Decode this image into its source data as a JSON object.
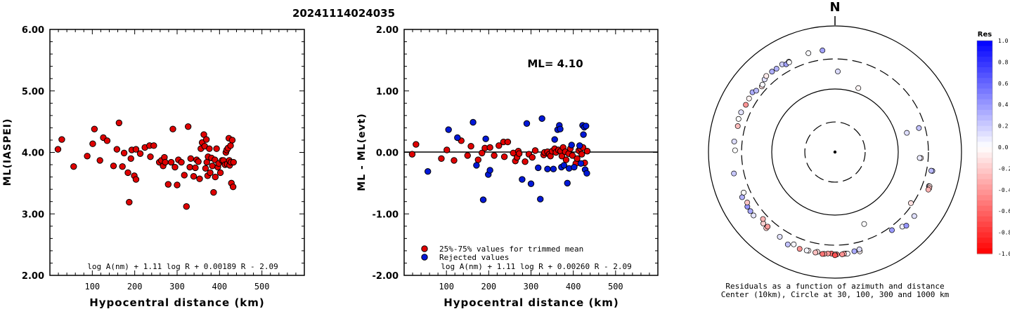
{
  "title": "20241114024035",
  "chart_data": [
    {
      "type": "scatter",
      "id": "left",
      "xlabel": "Hypocentral distance (km)",
      "ylabel": "ML(IASPEI)",
      "xlim": [
        0,
        600
      ],
      "ylim": [
        2.0,
        6.0
      ],
      "xticks": [
        "100",
        "200",
        "300",
        "400",
        "500"
      ],
      "yticks": [
        "2.00",
        "3.00",
        "4.00",
        "5.00",
        "6.00"
      ],
      "formula": "log A(nm) + 1.11 log R + 0.00189 R - 2.09",
      "color": "#e00000",
      "points": [
        [
          19,
          4.05
        ],
        [
          28,
          4.21
        ],
        [
          56,
          3.77
        ],
        [
          88,
          3.94
        ],
        [
          101,
          4.14
        ],
        [
          105,
          4.38
        ],
        [
          118,
          3.87
        ],
        [
          126,
          4.24
        ],
        [
          135,
          4.19
        ],
        [
          150,
          3.78
        ],
        [
          158,
          4.05
        ],
        [
          163,
          4.48
        ],
        [
          171,
          3.77
        ],
        [
          175,
          3.99
        ],
        [
          184,
          3.67
        ],
        [
          187,
          3.19
        ],
        [
          191,
          3.9
        ],
        [
          193,
          4.04
        ],
        [
          199,
          3.62
        ],
        [
          203,
          4.05
        ],
        [
          203,
          3.56
        ],
        [
          213,
          3.98
        ],
        [
          224,
          4.08
        ],
        [
          235,
          4.11
        ],
        [
          237,
          3.93
        ],
        [
          245,
          4.11
        ],
        [
          258,
          3.84
        ],
        [
          263,
          3.87
        ],
        [
          267,
          3.78
        ],
        [
          270,
          3.92
        ],
        [
          272,
          3.84
        ],
        [
          279,
          3.48
        ],
        [
          286,
          3.84
        ],
        [
          290,
          4.38
        ],
        [
          295,
          3.76
        ],
        [
          300,
          3.47
        ],
        [
          303,
          3.88
        ],
        [
          310,
          3.84
        ],
        [
          317,
          3.63
        ],
        [
          322,
          3.12
        ],
        [
          326,
          4.42
        ],
        [
          330,
          3.76
        ],
        [
          332,
          3.9
        ],
        [
          339,
          3.61
        ],
        [
          343,
          3.75
        ],
        [
          346,
          3.88
        ],
        [
          350,
          3.85
        ],
        [
          353,
          3.57
        ],
        [
          356,
          4.06
        ],
        [
          359,
          4.16
        ],
        [
          363,
          4.29
        ],
        [
          365,
          4.1
        ],
        [
          367,
          3.74
        ],
        [
          369,
          4.21
        ],
        [
          370,
          3.84
        ],
        [
          372,
          3.62
        ],
        [
          373,
          3.93
        ],
        [
          376,
          4.06
        ],
        [
          378,
          3.67
        ],
        [
          381,
          3.91
        ],
        [
          383,
          3.78
        ],
        [
          386,
          3.35
        ],
        [
          389,
          3.88
        ],
        [
          390,
          3.6
        ],
        [
          393,
          4.06
        ],
        [
          396,
          3.76
        ],
        [
          398,
          3.82
        ],
        [
          402,
          3.67
        ],
        [
          406,
          3.87
        ],
        [
          409,
          3.87
        ],
        [
          413,
          3.8
        ],
        [
          415,
          4.0
        ],
        [
          417,
          4.04
        ],
        [
          418,
          3.81
        ],
        [
          420,
          4.07
        ],
        [
          422,
          4.23
        ],
        [
          423,
          3.87
        ],
        [
          424,
          3.79
        ],
        [
          426,
          4.11
        ],
        [
          427,
          3.84
        ],
        [
          428,
          3.5
        ],
        [
          430,
          4.2
        ],
        [
          432,
          3.44
        ],
        [
          433,
          3.84
        ]
      ]
    },
    {
      "type": "scatter",
      "id": "middle",
      "xlabel": "Hypocentral distance (km)",
      "ylabel": "ML - ML(evt)",
      "xlim": [
        0,
        600
      ],
      "ylim": [
        -2.0,
        2.0
      ],
      "xticks": [
        "100",
        "200",
        "300",
        "400",
        "500"
      ],
      "yticks": [
        "-2.00",
        "-1.00",
        "0.00",
        "1.00",
        "2.00"
      ],
      "annotation": "ML= 4.10",
      "formula": "log A(nm) + 1.11 log R + 0.00260 R - 2.09",
      "legend": [
        "25%-75% values for trimmed mean",
        "Rejected values"
      ],
      "series_colors": [
        "#e00000",
        "#0018d8"
      ],
      "trimmed": [
        [
          19,
          -0.03
        ],
        [
          28,
          0.13
        ],
        [
          88,
          -0.1
        ],
        [
          101,
          0.04
        ],
        [
          118,
          -0.13
        ],
        [
          135,
          0.19
        ],
        [
          150,
          -0.05
        ],
        [
          158,
          0.1
        ],
        [
          175,
          -0.12
        ],
        [
          184,
          -0.01
        ],
        [
          191,
          0.07
        ],
        [
          203,
          0.08
        ],
        [
          213,
          -0.05
        ],
        [
          224,
          0.11
        ],
        [
          235,
          0.17
        ],
        [
          237,
          -0.07
        ],
        [
          245,
          0.17
        ],
        [
          258,
          -0.01
        ],
        [
          263,
          -0.14
        ],
        [
          267,
          -0.08
        ],
        [
          270,
          0.02
        ],
        [
          272,
          -0.02
        ],
        [
          286,
          -0.15
        ],
        [
          295,
          -0.03
        ],
        [
          303,
          -0.08
        ],
        [
          310,
          0.03
        ],
        [
          330,
          -0.04
        ],
        [
          332,
          0.0
        ],
        [
          339,
          0.01
        ],
        [
          343,
          -0.03
        ],
        [
          346,
          -0.06
        ],
        [
          350,
          0.02
        ],
        [
          356,
          0.06
        ],
        [
          359,
          0.0
        ],
        [
          365,
          0.04
        ],
        [
          370,
          0.02
        ],
        [
          373,
          -0.06
        ],
        [
          376,
          0.08
        ],
        [
          381,
          0.01
        ],
        [
          383,
          -0.12
        ],
        [
          389,
          -0.02
        ],
        [
          393,
          0.06
        ],
        [
          398,
          -0.05
        ],
        [
          406,
          -0.18
        ],
        [
          409,
          -0.1
        ],
        [
          413,
          0.03
        ],
        [
          417,
          0.06
        ],
        [
          420,
          -0.03
        ],
        [
          423,
          0.08
        ],
        [
          427,
          -0.17
        ],
        [
          433,
          0.02
        ]
      ],
      "rejected": [
        [
          56,
          -0.31
        ],
        [
          105,
          0.37
        ],
        [
          126,
          0.24
        ],
        [
          163,
          0.49
        ],
        [
          171,
          -0.21
        ],
        [
          187,
          -0.77
        ],
        [
          193,
          0.22
        ],
        [
          199,
          -0.36
        ],
        [
          203,
          -0.29
        ],
        [
          279,
          -0.44
        ],
        [
          290,
          0.47
        ],
        [
          300,
          -0.51
        ],
        [
          317,
          -0.25
        ],
        [
          322,
          -0.76
        ],
        [
          326,
          0.55
        ],
        [
          339,
          -0.27
        ],
        [
          353,
          -0.27
        ],
        [
          356,
          0.21
        ],
        [
          363,
          0.37
        ],
        [
          367,
          0.44
        ],
        [
          369,
          0.38
        ],
        [
          372,
          -0.24
        ],
        [
          378,
          -0.21
        ],
        [
          386,
          -0.5
        ],
        [
          390,
          -0.26
        ],
        [
          396,
          0.12
        ],
        [
          402,
          -0.24
        ],
        [
          415,
          0.11
        ],
        [
          418,
          -0.18
        ],
        [
          422,
          0.44
        ],
        [
          424,
          0.29
        ],
        [
          426,
          0.41
        ],
        [
          428,
          -0.28
        ],
        [
          430,
          0.43
        ],
        [
          432,
          -0.34
        ]
      ]
    },
    {
      "type": "polar-scatter",
      "id": "azimuth",
      "north_label": "N",
      "caption_line1": "Residuals as a function of azimuth and distance",
      "caption_line2": "Center (10km), Circle at 30, 100, 300 and 1000 km",
      "colorbar_title": "Res",
      "colorbar_ticks": [
        "1.0",
        "0.8",
        "0.6",
        "0.4",
        "0.2",
        "0.0",
        "-0.2",
        "-0.4",
        "-0.6",
        "-0.8",
        "-1.0"
      ],
      "circles_km": [
        30,
        100,
        300,
        1000
      ],
      "points": [
        [
          2,
          190,
          0.14
        ],
        [
          20,
          120,
          -0.04
        ],
        [
          74,
          240,
          0.23
        ],
        [
          75,
          150,
          0.13
        ],
        [
          94,
          230,
          -0.07
        ],
        [
          94,
          220,
          0.08
        ],
        [
          101,
          370,
          0.2
        ],
        [
          101,
          355,
          0.27
        ],
        [
          110,
          380,
          0.24
        ],
        [
          110,
          390,
          -0.1
        ],
        [
          111,
          395,
          -0.25
        ],
        [
          112,
          390,
          -0.3
        ],
        [
          124,
          280,
          -0.12
        ],
        [
          129,
          410,
          0.12
        ],
        [
          138,
          390,
          0.05
        ],
        [
          136,
          420,
          0.41
        ],
        [
          144,
          340,
          0.39
        ],
        [
          158,
          170,
          0.01
        ],
        [
          166,
          420,
          -0.05
        ],
        [
          166,
          390,
          0.13
        ],
        [
          169,
          400,
          0.33
        ],
        [
          174,
          415,
          -0.13
        ],
        [
          173,
          420,
          0.03
        ],
        [
          175,
          416,
          -0.32
        ],
        [
          176,
          423,
          -0.43
        ],
        [
          179,
          420,
          -0.45
        ],
        [
          182,
          408,
          -0.58
        ],
        [
          180,
          418,
          -0.29
        ],
        [
          180,
          433,
          -0.68
        ],
        [
          184,
          410,
          -0.4
        ],
        [
          186,
          420,
          -0.32
        ],
        [
          187,
          425,
          -0.55
        ],
        [
          190,
          405,
          -0.1
        ],
        [
          191,
          420,
          -0.25
        ],
        [
          195,
          415,
          -0.05
        ],
        [
          196,
          420,
          0.04
        ],
        [
          200,
          430,
          -0.42
        ],
        [
          204,
          400,
          0.03
        ],
        [
          207,
          440,
          0.24
        ],
        [
          213,
          400,
          0.11
        ],
        [
          222,
          420,
          -0.23
        ],
        [
          222,
          390,
          -0.39
        ],
        [
          225,
          400,
          -0.18
        ],
        [
          227,
          360,
          -0.29
        ],
        [
          232,
          430,
          0.1
        ],
        [
          235,
          430,
          0.34
        ],
        [
          238,
          430,
          0.42
        ],
        [
          240,
          400,
          -0.23
        ],
        [
          244,
          430,
          0.3
        ],
        [
          246,
          380,
          0.0
        ],
        [
          258,
          430,
          0.22
        ],
        [
          271,
          380,
          0.0
        ],
        [
          276,
          400,
          0.13
        ],
        [
          285,
          390,
          -0.26
        ],
        [
          289,
          410,
          0.0
        ],
        [
          293,
          410,
          0.11
        ],
        [
          298,
          395,
          -0.41
        ],
        [
          302,
          400,
          -0.05
        ],
        [
          306,
          410,
          0.33
        ],
        [
          308,
          380,
          0.27
        ],
        [
          312,
          360,
          -0.12
        ],
        [
          313,
          370,
          0.03
        ],
        [
          316,
          400,
          0.12
        ],
        [
          318,
          420,
          -0.08
        ],
        [
          322,
          415,
          0.31
        ],
        [
          325,
          410,
          0.3
        ],
        [
          329,
          420,
          0.19
        ],
        [
          331,
          390,
          0.37
        ],
        [
          333,
          405,
          0.1
        ],
        [
          333,
          395,
          0.02
        ],
        [
          345,
          420,
          0.02
        ],
        [
          353,
          420,
          0.36
        ]
      ]
    }
  ]
}
